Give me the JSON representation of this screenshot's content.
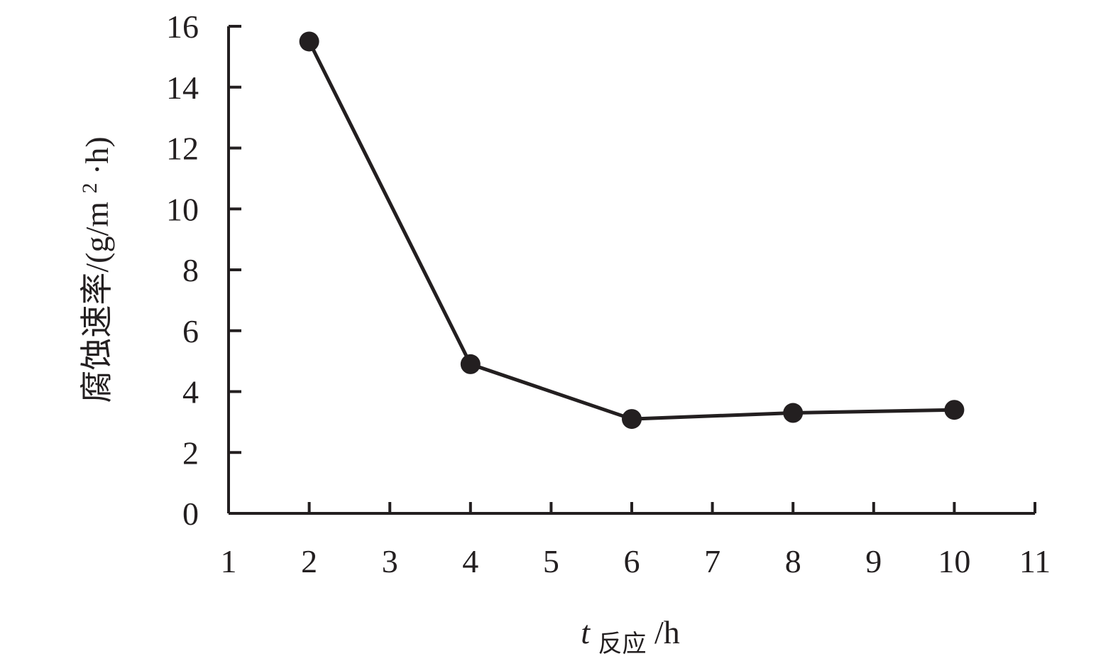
{
  "chart_data": {
    "type": "line",
    "title": "",
    "xlabel": {
      "symbol": "t",
      "subscript": "反应",
      "unit": "/h"
    },
    "ylabel": {
      "prefix": "腐蚀速率/(g/m",
      "superscript": "2",
      "suffix": "·h)"
    },
    "xlim": [
      1,
      11
    ],
    "ylim": [
      0,
      16
    ],
    "x_ticks": [
      1,
      2,
      3,
      4,
      5,
      6,
      7,
      8,
      9,
      10,
      11
    ],
    "y_ticks": [
      0,
      2,
      4,
      6,
      8,
      10,
      12,
      14,
      16
    ],
    "grid": false,
    "series": [
      {
        "x": [
          2,
          4,
          6,
          8,
          10
        ],
        "values": [
          15.5,
          4.9,
          3.1,
          3.3,
          3.4
        ]
      }
    ],
    "colors": {
      "ink": "#231f20"
    }
  }
}
